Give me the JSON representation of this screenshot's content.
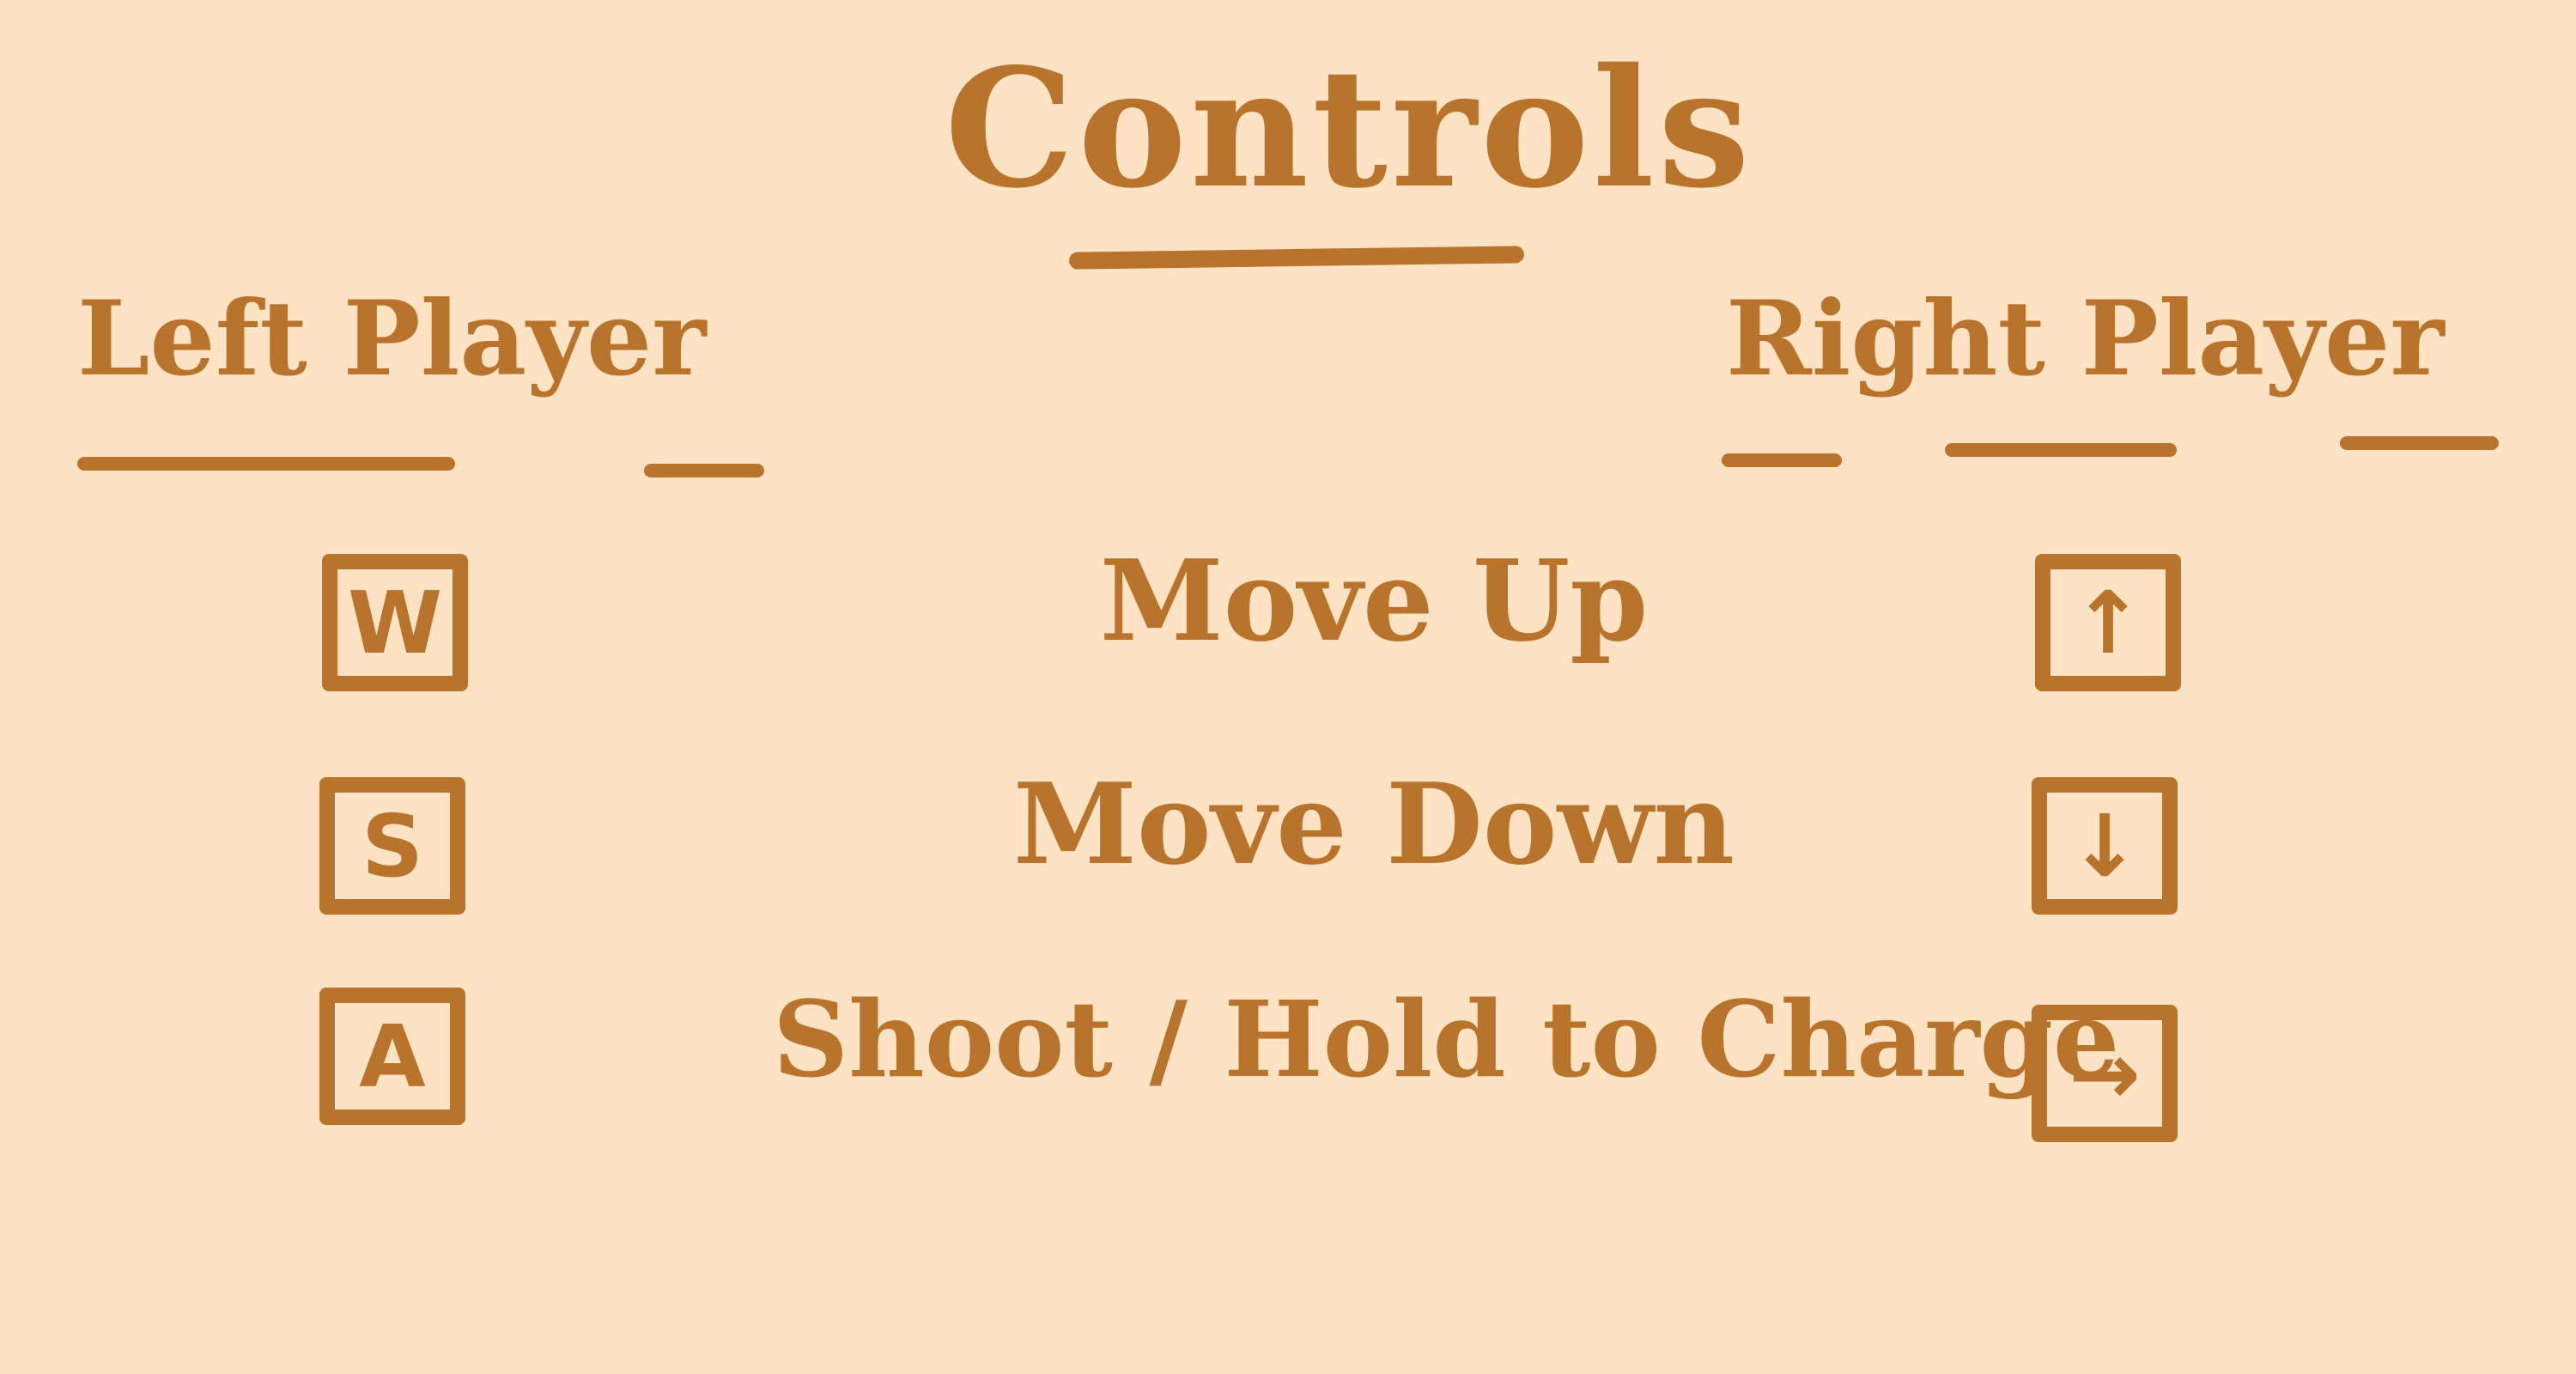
{
  "title": "Controls",
  "left_player": {
    "heading": "Left Player",
    "keys": {
      "up": "W",
      "down": "S",
      "shoot": "A"
    }
  },
  "right_player": {
    "heading": "Right Player",
    "keys": {
      "up": "↑",
      "down": "↓",
      "shoot": "→"
    }
  },
  "actions": {
    "up": "Move Up",
    "down": "Move Down",
    "shoot": "Shoot / Hold to Charge"
  },
  "colors": {
    "background": "#fde3c3",
    "ink": "#b8732c"
  }
}
